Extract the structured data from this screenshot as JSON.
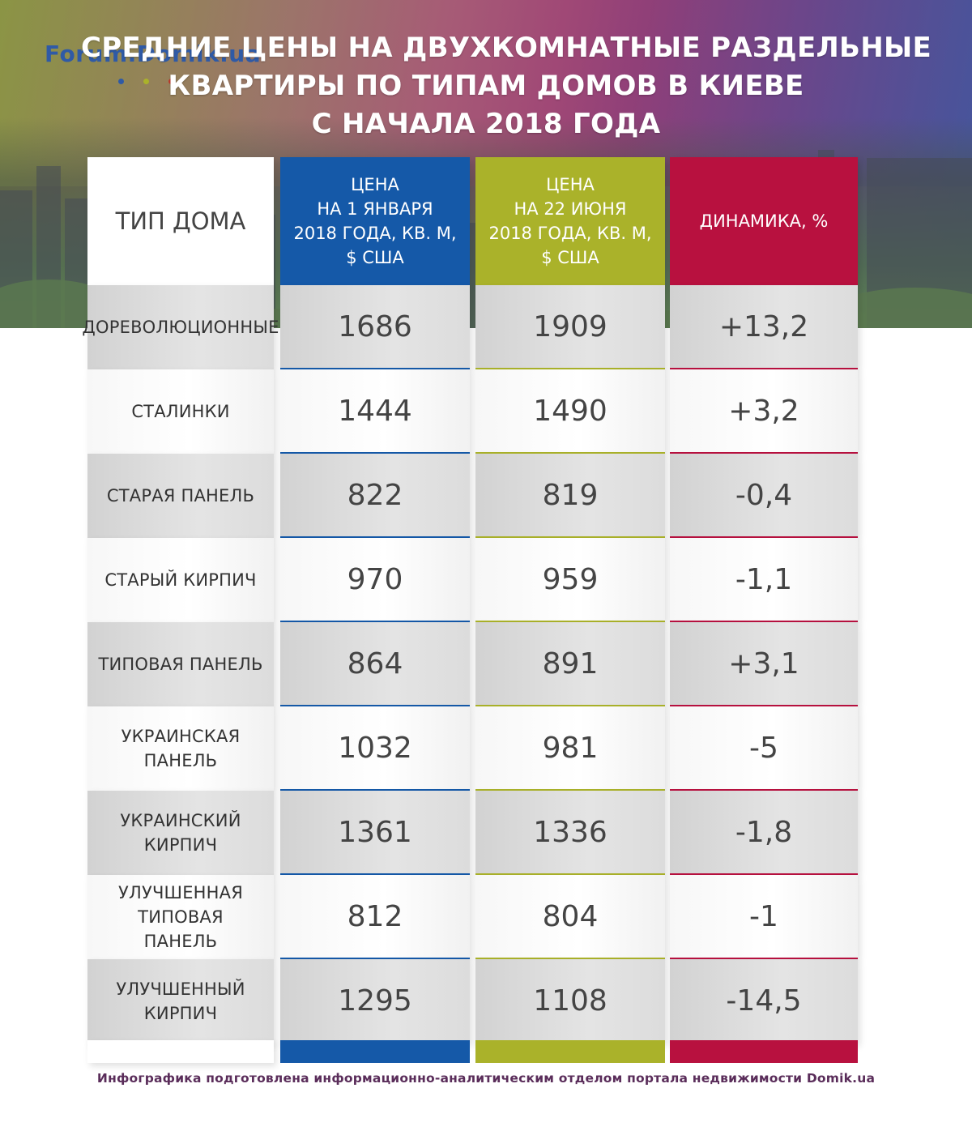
{
  "brand": {
    "logo_text": "Forum.Domik.ua",
    "dot_colors": [
      "#2f5aa6",
      "#aab22a",
      "#c0392b",
      "#c0392b"
    ]
  },
  "title_lines": [
    "СРЕДНИЕ ЦЕНЫ НА ДВУХКОМНАТНЫЕ РАЗДЕЛЬНЫЕ",
    "КВАРТИРЫ ПО ТИПАМ ДОМОВ В КИЕВЕ",
    "С НАЧАЛА 2018 ГОДА"
  ],
  "colors": {
    "blue": "#1559a8",
    "green": "#aab22a",
    "red": "#b8113f",
    "footer": "#5a2d5a"
  },
  "chart_data": {
    "type": "table",
    "title": "СРЕДНИЕ ЦЕНЫ НА ДВУХКОМНАТНЫЕ РАЗДЕЛЬНЫЕ КВАРТИРЫ ПО ТИПАМ ДОМОВ В КИЕВЕ С НАЧАЛА 2018 ГОДА",
    "columns": [
      {
        "key": "type",
        "header_lines": [
          "ТИП ДОМА"
        ]
      },
      {
        "key": "jan",
        "header_lines": [
          "ЦЕНА",
          "НА 1 ЯНВАРЯ",
          "2018 ГОДА, КВ. М,",
          "$ США"
        ]
      },
      {
        "key": "jun",
        "header_lines": [
          "ЦЕНА",
          "НА 22 ИЮНЯ",
          "2018 ГОДА, КВ. М,",
          "$ США"
        ]
      },
      {
        "key": "dyn",
        "header_lines": [
          "ДИНАМИКА, %"
        ]
      }
    ],
    "rows": [
      {
        "type_lines": [
          "ДОРЕВОЛЮЦИОННЫЕ"
        ],
        "jan": "1686",
        "jun": "1909",
        "dyn": "+13,2"
      },
      {
        "type_lines": [
          "СТАЛИНКИ"
        ],
        "jan": "1444",
        "jun": "1490",
        "dyn": "+3,2"
      },
      {
        "type_lines": [
          "СТАРАЯ ПАНЕЛЬ"
        ],
        "jan": "822",
        "jun": "819",
        "dyn": "-0,4"
      },
      {
        "type_lines": [
          "СТАРЫЙ КИРПИЧ"
        ],
        "jan": "970",
        "jun": "959",
        "dyn": "-1,1"
      },
      {
        "type_lines": [
          "ТИПОВАЯ ПАНЕЛЬ"
        ],
        "jan": "864",
        "jun": "891",
        "dyn": "+3,1"
      },
      {
        "type_lines": [
          "УКРАИНСКАЯ",
          "ПАНЕЛЬ"
        ],
        "jan": "1032",
        "jun": "981",
        "dyn": "-5"
      },
      {
        "type_lines": [
          "УКРАИНСКИЙ",
          "КИРПИЧ"
        ],
        "jan": "1361",
        "jun": "1336",
        "dyn": "-1,8"
      },
      {
        "type_lines": [
          "УЛУЧШЕННАЯ",
          "ТИПОВАЯ",
          "ПАНЕЛЬ"
        ],
        "jan": "812",
        "jun": "804",
        "dyn": "-1"
      },
      {
        "type_lines": [
          "УЛУЧШЕННЫЙ",
          "КИРПИЧ"
        ],
        "jan": "1295",
        "jun": "1108",
        "dyn": "-14,5"
      }
    ]
  },
  "footer": "Инфографика подготовлена информационно-аналитическим отделом портала недвижимости Domik.ua"
}
